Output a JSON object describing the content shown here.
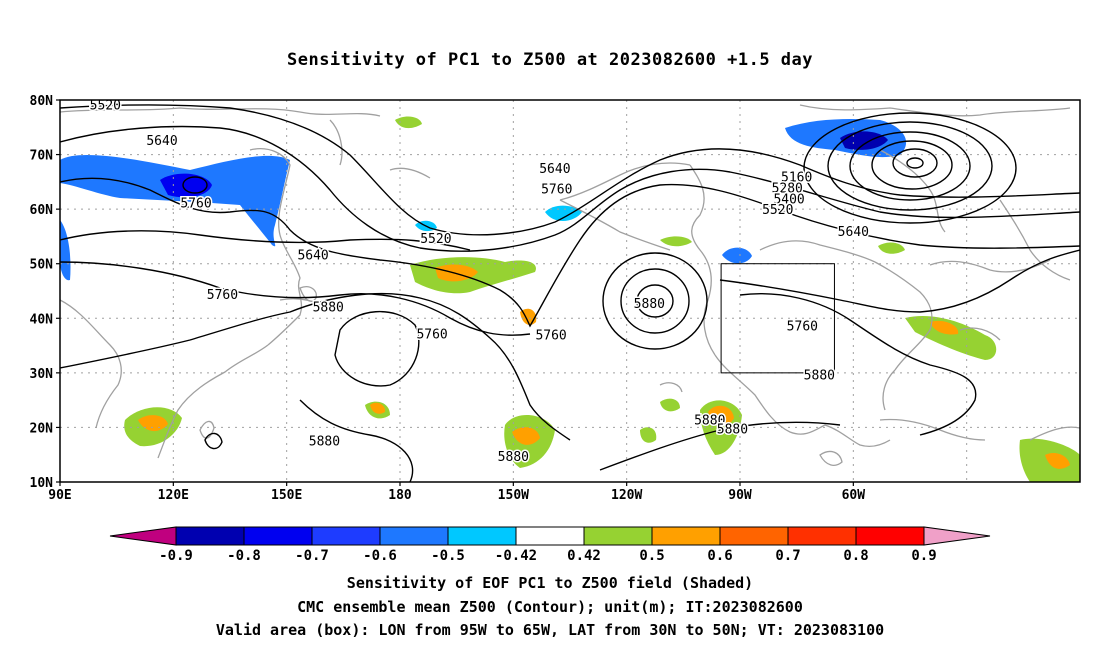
{
  "title": "Sensitivity of PC1 to Z500 at 2023082600 +1.5 day",
  "lat_labels": [
    "80N",
    "70N",
    "60N",
    "50N",
    "40N",
    "30N",
    "20N",
    "10N"
  ],
  "lon_labels": [
    "90E",
    "120E",
    "150E",
    "180",
    "150W",
    "120W",
    "90W",
    "60W"
  ],
  "contour_labels": [
    {
      "text": "5520",
      "lon": 102,
      "lat": 79
    },
    {
      "text": "5640",
      "lon": 117,
      "lat": 72.5
    },
    {
      "text": "5760",
      "lon": 126,
      "lat": 61
    },
    {
      "text": "5640",
      "lon": 157,
      "lat": 51.5
    },
    {
      "text": "5760",
      "lon": 133,
      "lat": 44.3
    },
    {
      "text": "5880",
      "lon": 161,
      "lat": 42
    },
    {
      "text": "5880",
      "lon": 160,
      "lat": 17.4
    },
    {
      "text": "5520",
      "lon": -170.5,
      "lat": 54.5
    },
    {
      "text": "5760",
      "lon": -171.5,
      "lat": 37
    },
    {
      "text": "5640",
      "lon": -139,
      "lat": 67.4
    },
    {
      "text": "5760",
      "lon": -138.5,
      "lat": 63.6
    },
    {
      "text": "5760",
      "lon": -140,
      "lat": 36.8
    },
    {
      "text": "5880",
      "lon": -150,
      "lat": 14.6
    },
    {
      "text": "5880",
      "lon": -114,
      "lat": 42.6
    },
    {
      "text": "5880",
      "lon": -98,
      "lat": 21.3
    },
    {
      "text": "5880",
      "lon": -92,
      "lat": 19.6
    },
    {
      "text": "5880",
      "lon": -69,
      "lat": 29.5
    },
    {
      "text": "5760",
      "lon": -73.5,
      "lat": 38.5
    },
    {
      "text": "5160",
      "lon": -75,
      "lat": 65.8
    },
    {
      "text": "5280",
      "lon": -77.5,
      "lat": 63.8
    },
    {
      "text": "5400",
      "lon": -77,
      "lat": 61.8
    },
    {
      "text": "5520",
      "lon": -80,
      "lat": 59.8
    },
    {
      "text": "5640",
      "lon": -60,
      "lat": 55.8
    }
  ],
  "colorbar": {
    "labels": [
      "-0.9",
      "-0.8",
      "-0.7",
      "-0.6",
      "-0.5",
      "-0.42",
      "0.42",
      "0.5",
      "0.6",
      "0.7",
      "0.8",
      "0.9"
    ],
    "colors": [
      "#c0007f",
      "#0000b0",
      "#0000f0",
      "#1e3cff",
      "#1e78ff",
      "#00c8ff",
      "#ffffff",
      "#96d232",
      "#ffa000",
      "#ff6400",
      "#ff3000",
      "#ff0000",
      "#f0a0c8"
    ]
  },
  "caption": {
    "line1": "Sensitivity of EOF PC1 to Z500 field (Shaded)",
    "line2": "CMC ensemble mean Z500 (Contour); unit(m); IT:2023082600",
    "line3": "Valid area (box): LON from 95W to 65W, LAT from 30N to 50N; VT: 2023083100"
  }
}
